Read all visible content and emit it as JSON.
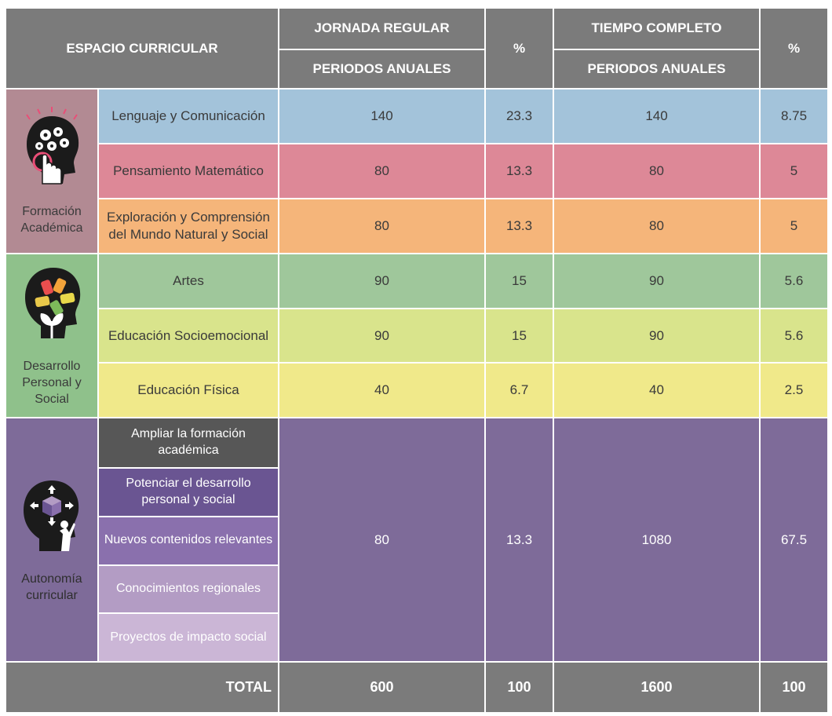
{
  "header": {
    "espacio": "ESPACIO CURRICULAR",
    "jornada": "JORNADA REGULAR",
    "periodos1": "PERIODOS ANUALES",
    "pct1": "%",
    "tiempo": "TIEMPO COMPLETO",
    "periodos2": "PERIODOS ANUALES",
    "pct2": "%"
  },
  "categories": {
    "formacion": "Formación Académica",
    "desarrollo": "Desarrollo Personal y Social",
    "autonomia": "Autonomía curricular"
  },
  "rows": [
    {
      "subject": "Lenguaje y Comunicación",
      "jr": "140",
      "jr_pct": "23.3",
      "tc": "140",
      "tc_pct": "8.75",
      "color": "#a3c3da"
    },
    {
      "subject": "Pensamiento Matemático",
      "jr": "80",
      "jr_pct": "13.3",
      "tc": "80",
      "tc_pct": "5",
      "color": "#dd8897"
    },
    {
      "subject": "Exploración y Comprensión del Mundo Natural y Social",
      "jr": "80",
      "jr_pct": "13.3",
      "tc": "80",
      "tc_pct": "5",
      "color": "#f5b57a"
    },
    {
      "subject": "Artes",
      "jr": "90",
      "jr_pct": "15",
      "tc": "90",
      "tc_pct": "5.6",
      "color": "#9fc79b"
    },
    {
      "subject": "Educación Socioemocional",
      "jr": "90",
      "jr_pct": "15",
      "tc": "90",
      "tc_pct": "5.6",
      "color": "#d9e48c"
    },
    {
      "subject": "Educación Física",
      "jr": "40",
      "jr_pct": "6.7",
      "tc": "40",
      "tc_pct": "2.5",
      "color": "#f0e98a"
    }
  ],
  "autonomia": {
    "items": [
      {
        "label": "Ampliar la formación académica",
        "color": "#575757"
      },
      {
        "label": "Potenciar el desarrollo personal y social",
        "color": "#6a5592"
      },
      {
        "label": "Nuevos contenidos relevantes",
        "color": "#8a70ad"
      },
      {
        "label": "Conocimientos regionales",
        "color": "#b39cc4"
      },
      {
        "label": "Proyectos de impacto social",
        "color": "#cbb6d6"
      }
    ],
    "jr": "80",
    "jr_pct": "13.3",
    "tc": "1080",
    "tc_pct": "67.5"
  },
  "total": {
    "label": "TOTAL",
    "jr": "600",
    "jr_pct": "100",
    "tc": "1600",
    "tc_pct": "100"
  },
  "colors": {
    "header": "#7b7b7b",
    "formacion_bg": "#b28a93",
    "desarrollo_bg": "#8fc18b",
    "autonomia_bg": "#7e6b99"
  },
  "icons": [
    "head-gears-icon",
    "head-hands-icon",
    "head-cube-icon"
  ]
}
